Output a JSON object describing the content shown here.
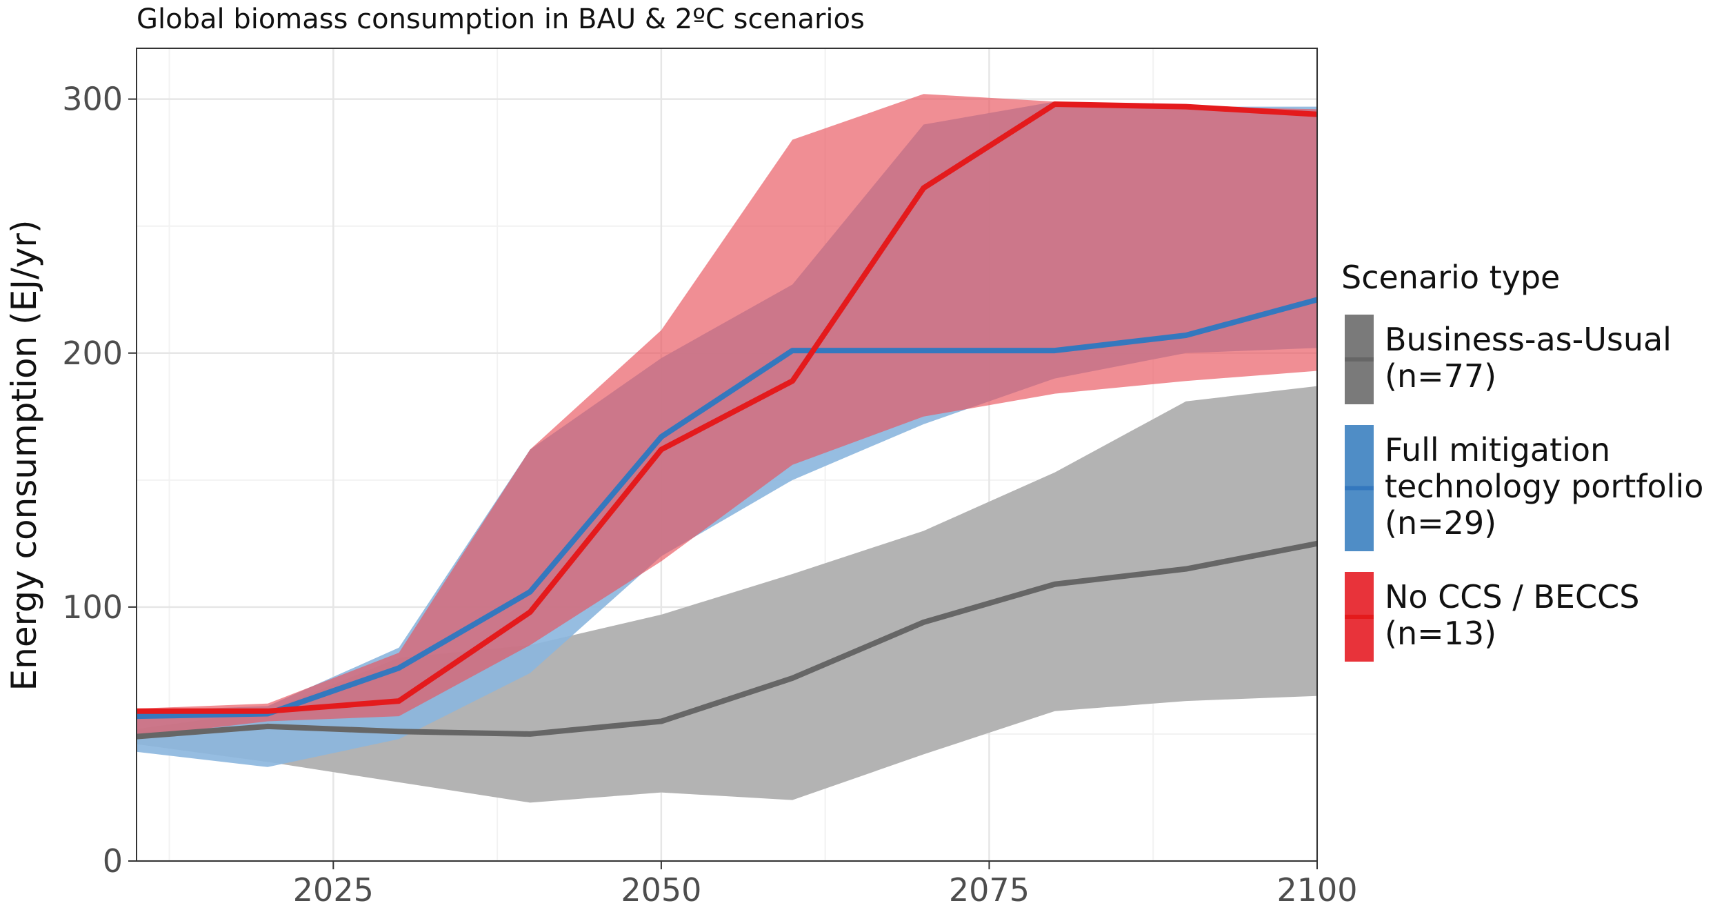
{
  "chart_data": {
    "type": "area",
    "title": "Global biomass consumption in BAU & 2ºC scenarios",
    "xlabel": "",
    "ylabel": "Energy consumption (EJ/yr)",
    "xlim": [
      2010,
      2100
    ],
    "ylim": [
      0,
      320
    ],
    "x_ticks": [
      2025,
      2050,
      2075,
      2100
    ],
    "x_tick_labels": [
      "2025",
      "2050",
      "2075",
      "2100"
    ],
    "y_ticks": [
      0,
      100,
      200,
      300
    ],
    "y_tick_labels": [
      "0",
      "100",
      "200",
      "300"
    ],
    "grid": true,
    "legend": {
      "title": "Scenario type",
      "position": "right",
      "items": [
        {
          "lines": [
            "Business-as-Usual",
            "(n=77)"
          ],
          "color": "#7a7a7a"
        },
        {
          "lines": [
            "Full mitigation",
            "technology portfolio",
            "(n=29)"
          ],
          "color": "#4f8dc6"
        },
        {
          "lines": [
            "No CCS / BECCS",
            "(n=13)"
          ],
          "color": "#e8333a"
        }
      ]
    },
    "series": [
      {
        "name": "Business-as-Usual (n=77)",
        "line_color": "#666666",
        "band_color": "#b3b3b3",
        "band_opacity": 1,
        "x": [
          2010,
          2020,
          2030,
          2040,
          2050,
          2060,
          2070,
          2080,
          2090,
          2100
        ],
        "values": [
          49,
          53,
          51,
          50,
          55,
          72,
          94,
          109,
          115,
          125
        ],
        "low": [
          46,
          39,
          31,
          23,
          27,
          24,
          42,
          59,
          63,
          65
        ],
        "high": [
          52,
          59,
          80,
          85,
          97,
          113,
          130,
          153,
          181,
          187
        ]
      },
      {
        "name": "Full mitigation technology portfolio (n=29)",
        "line_color": "#3478be",
        "band_color": "#8bb6de",
        "band_opacity": 0.9,
        "x": [
          2010,
          2020,
          2030,
          2040,
          2050,
          2060,
          2070,
          2080,
          2090,
          2100
        ],
        "values": [
          57,
          58,
          76,
          106,
          167,
          201,
          201,
          201,
          207,
          221
        ],
        "low": [
          43,
          37,
          48,
          74,
          120,
          150,
          172,
          190,
          200,
          202
        ],
        "high": [
          59,
          61,
          84,
          162,
          198,
          227,
          290,
          299,
          297,
          297
        ]
      },
      {
        "name": "No CCS / BECCS (n=13)",
        "line_color": "#e41a1c",
        "band_color": "#e8545c",
        "band_opacity": 0.66,
        "x": [
          2010,
          2020,
          2030,
          2040,
          2050,
          2060,
          2070,
          2080,
          2090,
          2100
        ],
        "values": [
          59,
          59,
          63,
          98,
          162,
          189,
          265,
          298,
          297,
          294
        ],
        "low": [
          49,
          55,
          57,
          85,
          118,
          156,
          175,
          184,
          189,
          193
        ],
        "high": [
          60,
          62,
          82,
          162,
          209,
          284,
          302,
          299,
          297,
          296
        ]
      }
    ]
  }
}
